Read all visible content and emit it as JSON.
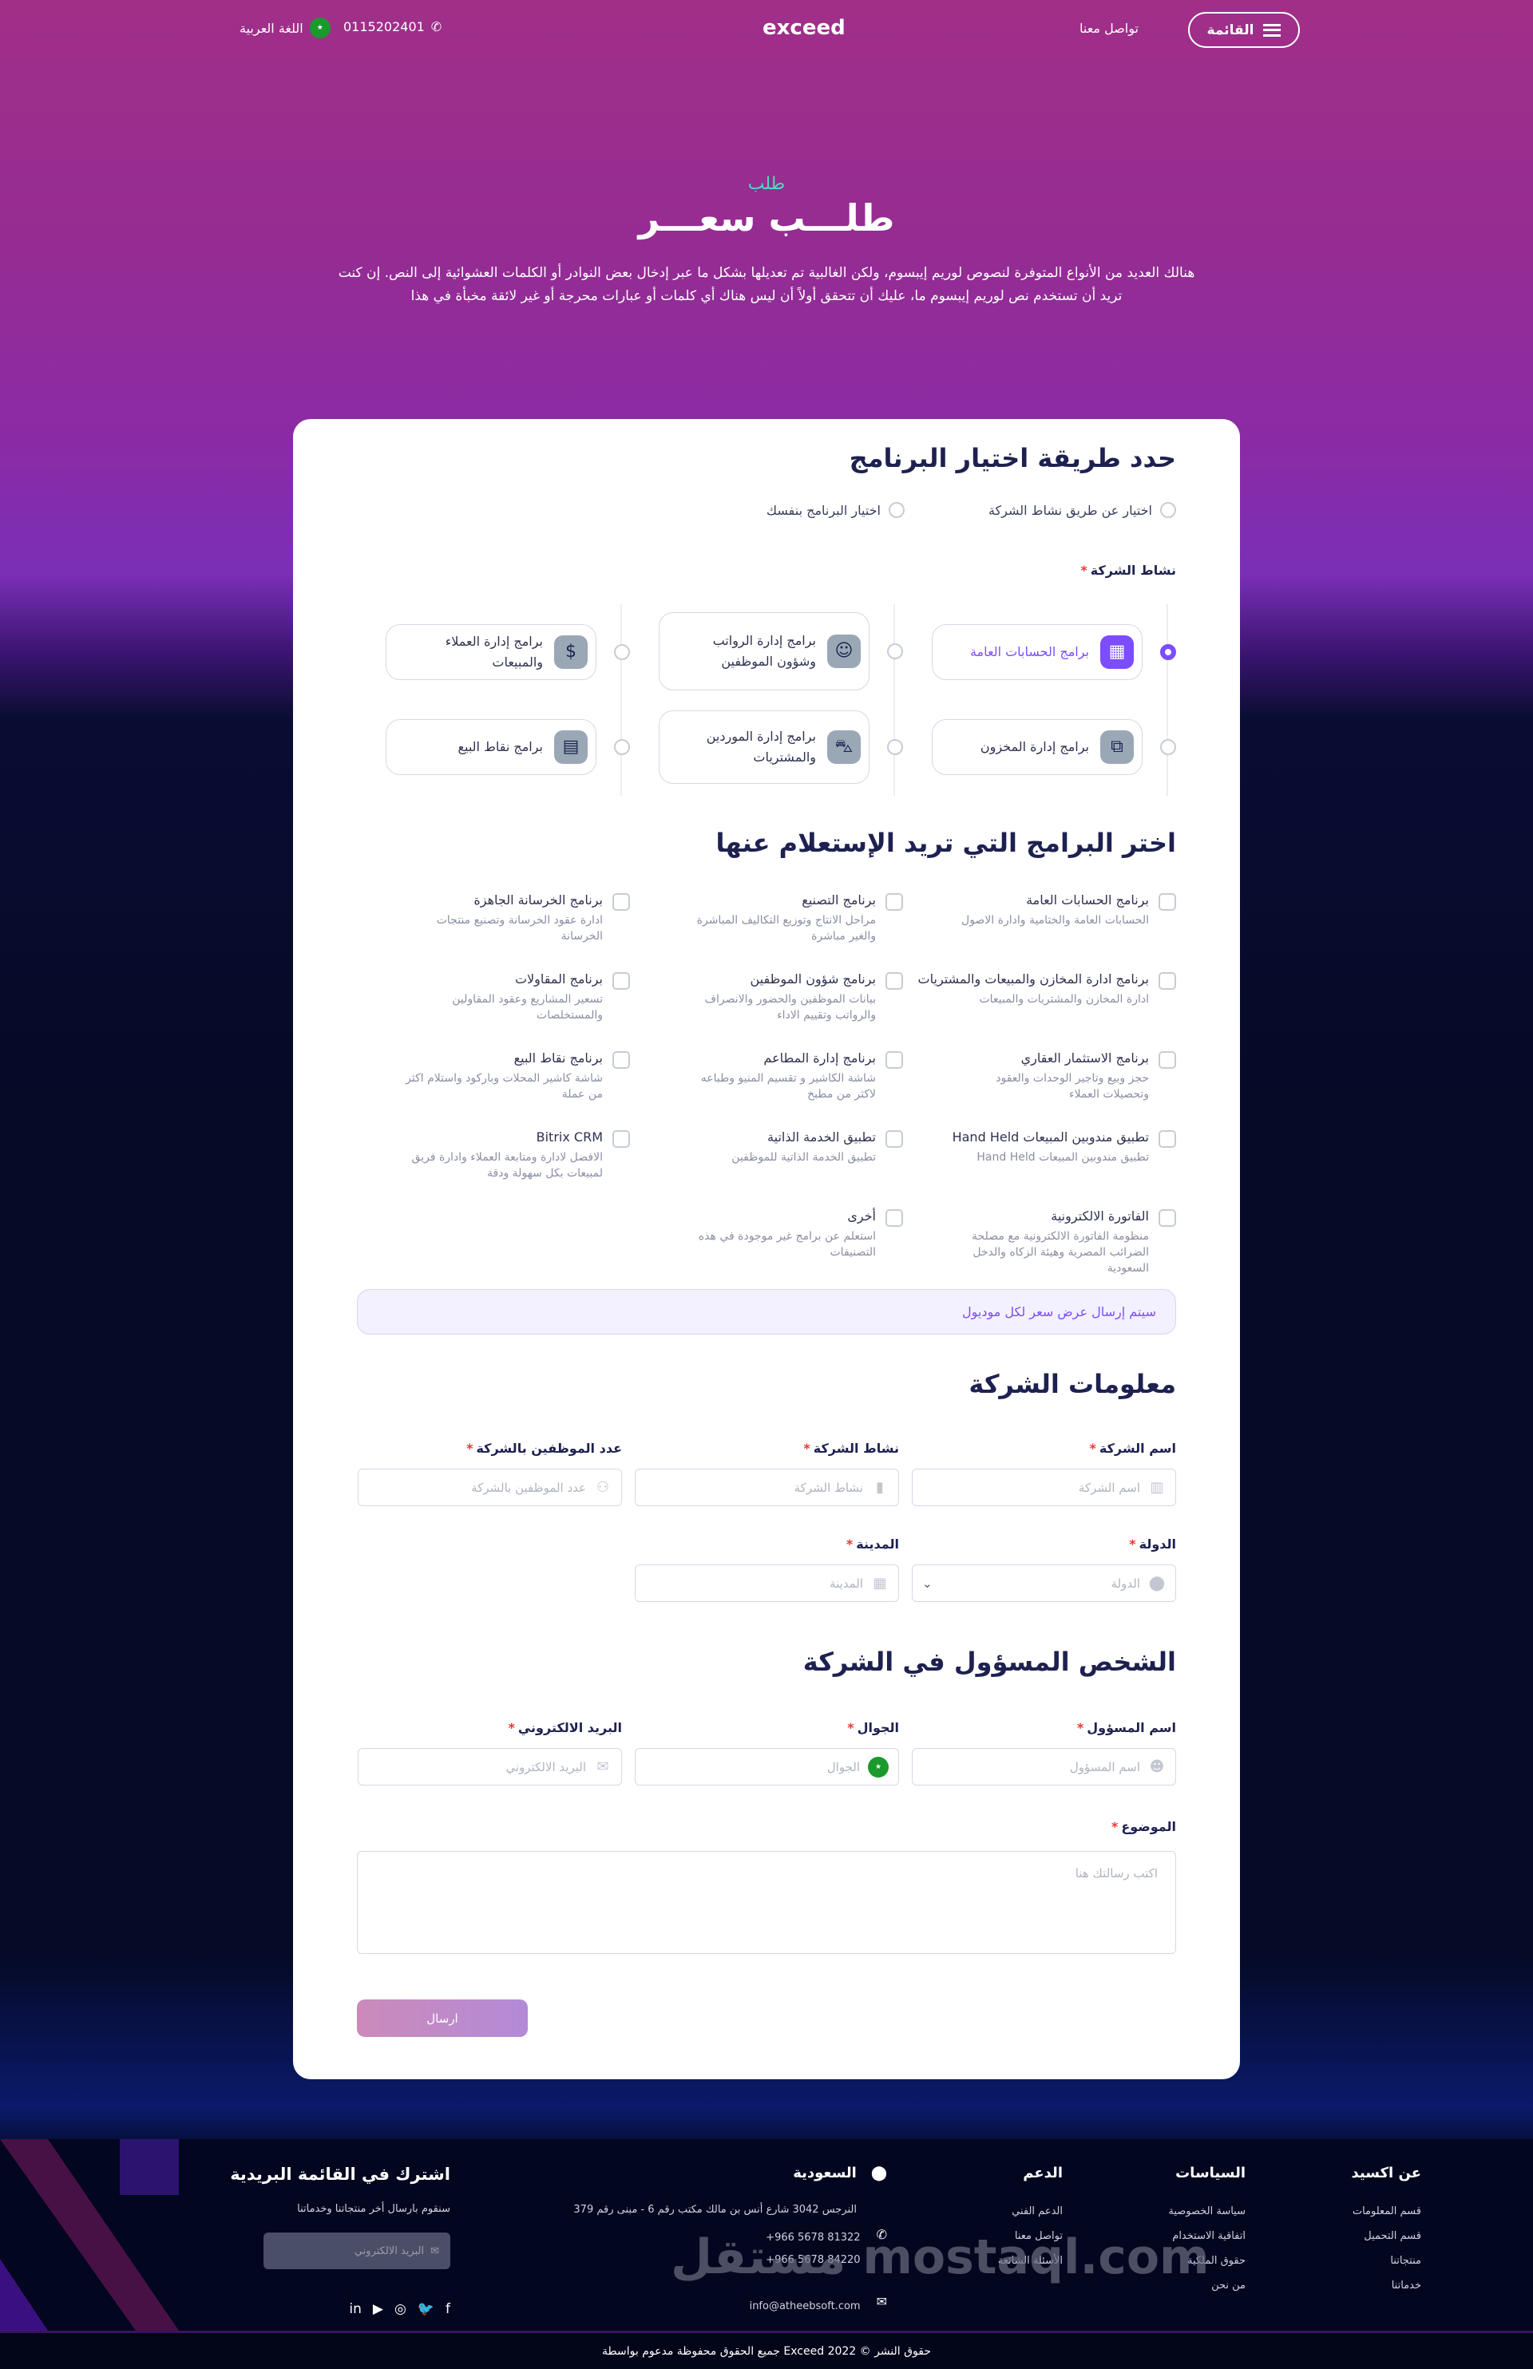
{
  "header": {
    "menu_label": "القائمة",
    "contact_link": "تواصل معنا",
    "logo": "exceed",
    "phone": "0115202401",
    "language": "اللغة العربية"
  },
  "hero": {
    "kicker": "طلب",
    "title": "طلـــب سعـــر",
    "text": "هنالك العديد من الأنواع المتوفرة لنصوص لوريم إيبسوم، ولكن الغالبية تم تعديلها بشكل ما عبر إدخال بعض النوادر أو الكلمات العشوائية إلى النص. إن كنت تريد أن تستخدم نص لوريم إيبسوم ما، عليك أن تتحقق أولاً أن ليس هناك أي كلمات أو عبارات محرجة أو غير لائقة مخبأة في هذا"
  },
  "selection": {
    "title": "حدد طريقة اختيار البرنامج",
    "options": [
      "اختيار عن طريق نشاط الشركة",
      "اختيار البرنامج بنفسك"
    ],
    "activity_label": "نشاط الشركة",
    "activities": [
      {
        "label": "برامج الحسابات العامة",
        "icon": "calculator-icon",
        "selected": true
      },
      {
        "label": "برامج إدارة المخزون",
        "icon": "boxes-icon",
        "selected": false
      },
      {
        "label": "برامج إدارة الرواتب وشؤون الموظفين",
        "icon": "users-icon",
        "selected": false
      },
      {
        "label": "برامج إدارة الموردين والمشتريات",
        "icon": "basket-icon",
        "selected": false
      },
      {
        "label": "برامج إدارة العملاء والمبيعات",
        "icon": "money-bag-icon",
        "selected": false
      },
      {
        "label": "برامج نقاط البيع",
        "icon": "pos-terminal-icon",
        "selected": false
      }
    ]
  },
  "programs": {
    "title": "اختر البرامج التي تريد الإستعلام عنها",
    "items": [
      {
        "title": "برنامج الحسابات العامة",
        "desc": "الحسابات العامة والختامية وادارة الاصول"
      },
      {
        "title": "برنامج التصنيع",
        "desc": "مراحل الانتاج وتوزيع التكاليف المباشرة والغير مباشرة"
      },
      {
        "title": "برنامج الخرسانة الجاهزة",
        "desc": "ادارة عقود الخرسانة وتصنيع منتجات الخرسانة"
      },
      {
        "title": "برنامج ادارة المخازن والمبيعات والمشتريات",
        "desc": "ادارة المخازن والمشتريات والمبيعات"
      },
      {
        "title": "برنامج شؤون الموظفين",
        "desc": "بيانات الموظفين والحضور والانصراف والرواتب وتقييم الاداء"
      },
      {
        "title": "برنامج المقاولات",
        "desc": "تسعير المشاريع وعقود المقاولين والمستخلصات"
      },
      {
        "title": "برنامج الاستثمار العقاري",
        "desc": "حجز وبيع وتاجير الوحدات والعقود وتحصيلات العملاء"
      },
      {
        "title": "برنامج إدارة المطاعم",
        "desc": "شاشة الكاشير و تقسيم المنيو وطباعه لاكثر من مطبخ"
      },
      {
        "title": "برنامج نقاط البيع",
        "desc": "شاشة كاشير المحلات وباركود واستلام اكثر من عملة"
      },
      {
        "title": "تطبيق مندوبين المبيعات Hand Held",
        "desc": "تطبيق مندوبين المبيعات Hand Held"
      },
      {
        "title": "تطبيق الخدمة الذاتية",
        "desc": "تطبيق الخدمة الذاتية للموظفين"
      },
      {
        "title": "Bitrix CRM",
        "desc": "الافضل لادارة ومتابعة العملاء وادارة فريق لمبيعات بكل سهولة ودقة"
      },
      {
        "title": "الفاتورة الالكترونية",
        "desc": "منظومة الفاتورة الالكترونية مع مصلحة الضرائب المصرية وهيئة الزكاه والدخل السعودية"
      },
      {
        "title": "أخرى",
        "desc": "استعلم عن برامج غير موجودة في هذه التصنيفات"
      }
    ],
    "note": "سيتم إرسال عرض سعر لكل موديول"
  },
  "company": {
    "title": "معلومات الشركة",
    "fields": [
      {
        "label": "اسم الشركة",
        "placeholder": "اسم الشركة",
        "icon": "building-icon"
      },
      {
        "label": "نشاط الشركة",
        "placeholder": "نشاط الشركة",
        "icon": "bar-chart-icon"
      },
      {
        "label": "عدد الموظفين بالشركة",
        "placeholder": "عدد الموظفين بالشركة",
        "icon": "users-icon"
      },
      {
        "label": "الدولة",
        "placeholder": "الدولة",
        "icon": "location-pin-icon"
      },
      {
        "label": "المدينة",
        "placeholder": "المدينة",
        "icon": "city-icon"
      }
    ]
  },
  "contact": {
    "title": "الشخص المسؤول في الشركة",
    "fields": [
      {
        "label": "اسم المسؤول",
        "placeholder": "اسم المسؤول",
        "icon": "user-icon"
      },
      {
        "label": "الجوال",
        "placeholder": "الجوال",
        "icon": "saudi-flag-icon"
      },
      {
        "label": "البريد الالكتروني",
        "placeholder": "البريد الالكتروني",
        "icon": "mail-icon"
      }
    ],
    "subject_label": "الموضوع",
    "subject_placeholder": "اكتب رسالتك هنا",
    "submit": "ارسال"
  },
  "footer": {
    "about": {
      "title": "عن اكسيد",
      "links": [
        "قسم المعلومات",
        "قسم التحميل",
        "منتجاتنا",
        "خدماتنا"
      ]
    },
    "policies": {
      "title": "السياسات",
      "links": [
        "سياسة الخصوصية",
        "اتفاقية الاستخدام",
        "حقوق الملكية",
        "من نحن"
      ]
    },
    "support": {
      "title": "الدعم",
      "links": [
        "الدعم الفني",
        "تواصل معنا",
        "الأسئلة الشائعة"
      ]
    },
    "location": {
      "title": "السعودية",
      "address": "النرجس 3042 شارع أنس بن مالك مكتب رقم 6 - مبنى رقم 379",
      "phones": [
        "+966 5678 81322",
        "+966 5678 84220"
      ],
      "email": "info@atheebsoft.com"
    },
    "newsletter": {
      "title": "اشترك في القائمة البريدية",
      "text": "سنقوم بارسال أخر منتجاتنا وخدماتنا",
      "placeholder": "البريد الالكتروني"
    },
    "social": [
      "linkedin-icon",
      "youtube-icon",
      "instagram-icon",
      "twitter-icon",
      "facebook-icon"
    ],
    "watermark": "مستقل mostaql.com",
    "copyright": "حقوق النشر © Exceed 2022 جميع الحقوق محفوظة مدعوم بواسطة"
  },
  "colors": {
    "accent": "#7b4dff",
    "navy": "#1e2150",
    "required": "#e53935",
    "teal": "#4fd8c0"
  }
}
